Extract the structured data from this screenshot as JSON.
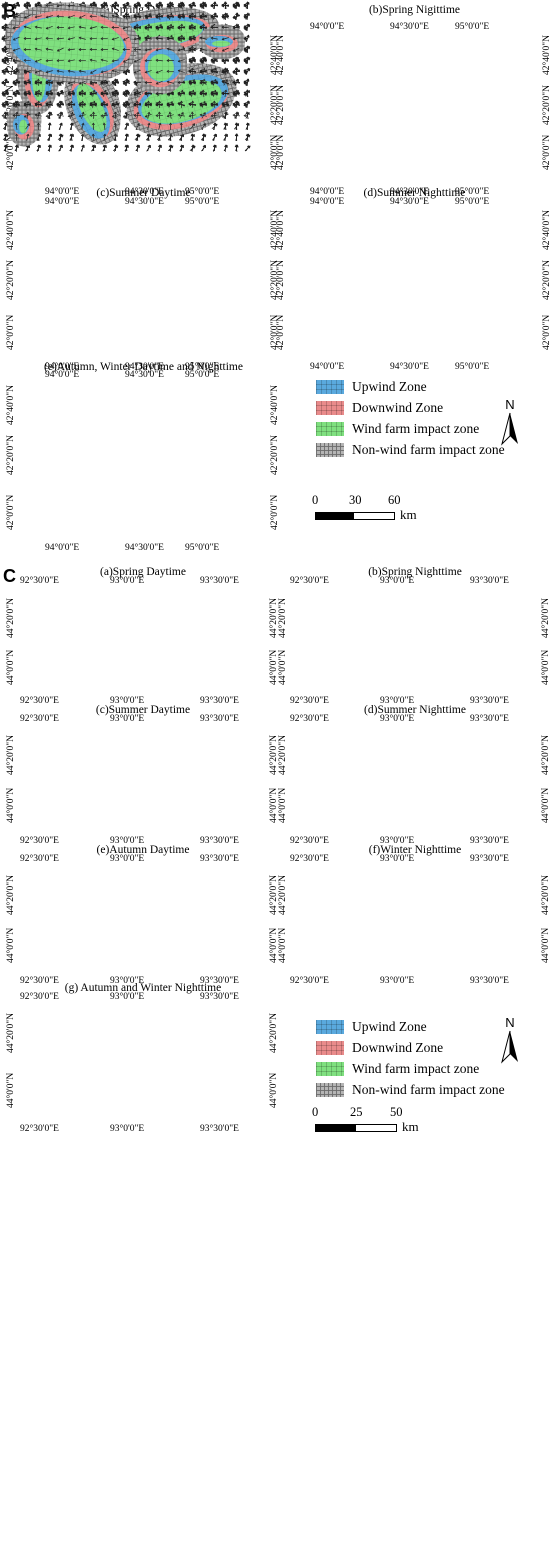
{
  "section_b": {
    "label": "B",
    "panels": [
      {
        "title": "(a)Spring Daytime",
        "x_labels": [
          "94°0'0\"E",
          "94°30'0\"E",
          "95°0'0\"E"
        ],
        "y_labels": [
          "42°40'0\"N",
          "42°20'0\"N",
          "42°0'0\"N"
        ]
      },
      {
        "title": "(b)Spring Nigittime",
        "x_labels": [
          "94°0'0\"E",
          "94°30'0\"E",
          "95°0'0\"E"
        ],
        "y_labels": [
          "42°40'0\"N",
          "42°20'0\"N",
          "42°0'0\"N"
        ]
      },
      {
        "title": "(c)Summer Daytime",
        "x_labels": [
          "94°0'0\"E",
          "94°30'0\"E",
          "95°0'0\"E"
        ],
        "y_labels": [
          "42°40'0\"N",
          "42°20'0\"N",
          "42°0'0\"N"
        ]
      },
      {
        "title": "(d)Summer Nighttime",
        "x_labels": [
          "94°0'0\"E",
          "94°30'0\"E",
          "95°0'0\"E"
        ],
        "y_labels": [
          "42°40'0\"N",
          "42°20'0\"N",
          "42°0'0\"N"
        ]
      },
      {
        "title": "(e)Autumn, Winter Daytime and Nighttime",
        "x_labels": [
          "94°0'0\"E",
          "94°30'0\"E",
          "95°0'0\"E"
        ],
        "y_labels": [
          "42°40'0\"N",
          "42°20'0\"N",
          "42°0'0\"N"
        ]
      }
    ],
    "legend": {
      "items": [
        {
          "label": "Upwind Zone",
          "color": "#5aa9de"
        },
        {
          "label": "Downwind Zone",
          "color": "#e98b8b"
        },
        {
          "label": "Wind farm impact zone",
          "color": "#7fe07f"
        },
        {
          "label": "Non-wind farm impact zone",
          "color": "#9a9a9a"
        }
      ],
      "north": "N",
      "scale_ticks": [
        "0",
        "30",
        "60"
      ],
      "scale_unit": "km"
    }
  },
  "section_c": {
    "label": "C",
    "panels": [
      {
        "title": "(a)Spring Daytime",
        "x_labels": [
          "92°30'0\"E",
          "93°0'0\"E",
          "93°30'0\"E"
        ],
        "y_labels": [
          "44°20'0\"N",
          "44°0'0\"N"
        ]
      },
      {
        "title": "(b)Spring Nighttime",
        "x_labels": [
          "92°30'0\"E",
          "93°0'0\"E",
          "93°30'0\"E"
        ],
        "y_labels": [
          "44°20'0\"N",
          "44°0'0\"N"
        ]
      },
      {
        "title": "(c)Summer Daytime",
        "x_labels": [
          "92°30'0\"E",
          "93°0'0\"E",
          "93°30'0\"E"
        ],
        "y_labels": [
          "44°20'0\"N",
          "44°0'0\"N"
        ]
      },
      {
        "title": "(d)Summer Nighttime",
        "x_labels": [
          "92°30'0\"E",
          "93°0'0\"E",
          "93°30'0\"E"
        ],
        "y_labels": [
          "44°20'0\"N",
          "44°0'0\"N"
        ]
      },
      {
        "title": "(e)Autumn Daytime",
        "x_labels": [
          "92°30'0\"E",
          "93°0'0\"E",
          "93°30'0\"E"
        ],
        "y_labels": [
          "44°20'0\"N",
          "44°0'0\"N"
        ]
      },
      {
        "title": "(f)Winter Nighttime",
        "x_labels": [
          "92°30'0\"E",
          "93°0'0\"E",
          "93°30'0\"E"
        ],
        "y_labels": [
          "44°20'0\"N",
          "44°0'0\"N"
        ]
      },
      {
        "title": "(g) Autumn and Winter Nighttime",
        "x_labels": [
          "92°30'0\"E",
          "93°0'0\"E",
          "93°30'0\"E"
        ],
        "y_labels": [
          "44°20'0\"N",
          "44°0'0\"N"
        ]
      }
    ],
    "legend": {
      "items": [
        {
          "label": "Upwind Zone",
          "color": "#5aa9de"
        },
        {
          "label": "Downwind Zone",
          "color": "#e98b8b"
        },
        {
          "label": "Wind farm impact zone",
          "color": "#7fe07f"
        },
        {
          "label": "Non-wind farm impact zone",
          "color": "#9a9a9a"
        }
      ],
      "north": "N",
      "scale_ticks": [
        "0",
        "25",
        "50"
      ],
      "scale_unit": "km"
    }
  }
}
